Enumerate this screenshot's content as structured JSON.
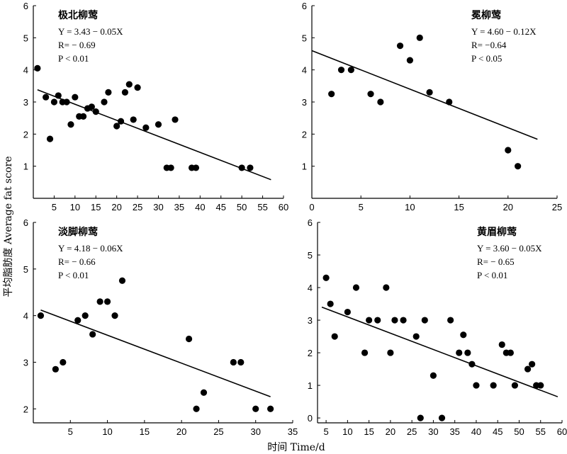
{
  "figure": {
    "ylabel": "平均脂肪度 Average fat score",
    "xlabel": "时间 Time/d"
  },
  "chart_data": [
    {
      "type": "scatter",
      "title": "极北柳莺",
      "annotations": [
        "Y = 3.43 − 0.05X",
        "R= − 0.69",
        "P < 0.01"
      ],
      "xlim": [
        0,
        60
      ],
      "ylim": [
        0,
        6
      ],
      "xticks": [
        5,
        10,
        15,
        20,
        25,
        30,
        35,
        40,
        45,
        50,
        55,
        60
      ],
      "yticks": [
        1,
        2,
        3,
        4,
        5,
        6
      ],
      "points": [
        [
          1,
          4.05
        ],
        [
          3,
          3.15
        ],
        [
          4,
          1.85
        ],
        [
          5,
          3.0
        ],
        [
          6,
          3.2
        ],
        [
          7,
          3.0
        ],
        [
          8,
          3.0
        ],
        [
          9,
          2.3
        ],
        [
          10,
          3.15
        ],
        [
          11,
          2.55
        ],
        [
          12,
          2.55
        ],
        [
          13,
          2.8
        ],
        [
          14,
          2.85
        ],
        [
          15,
          2.7
        ],
        [
          17,
          3.0
        ],
        [
          18,
          3.3
        ],
        [
          20,
          2.25
        ],
        [
          21,
          2.4
        ],
        [
          22,
          3.3
        ],
        [
          23,
          3.55
        ],
        [
          24,
          2.45
        ],
        [
          25,
          3.45
        ],
        [
          27,
          2.2
        ],
        [
          30,
          2.3
        ],
        [
          32,
          0.95
        ],
        [
          33,
          0.95
        ],
        [
          34,
          2.45
        ],
        [
          38,
          0.95
        ],
        [
          39,
          0.95
        ],
        [
          50,
          0.95
        ],
        [
          52,
          0.95
        ]
      ],
      "regression": {
        "intercept": 3.43,
        "slope": -0.05,
        "x_range": [
          1,
          57
        ]
      }
    },
    {
      "type": "scatter",
      "title": "冕柳莺",
      "annotations": [
        "Y = 4.60 − 0.12X",
        "R= −0.64",
        "P < 0.05"
      ],
      "xlim": [
        0,
        25
      ],
      "ylim": [
        0,
        6
      ],
      "xticks": [
        0,
        5,
        10,
        15,
        20,
        25
      ],
      "yticks": [
        1,
        2,
        3,
        4,
        5,
        6
      ],
      "points": [
        [
          2,
          3.25
        ],
        [
          3,
          4.0
        ],
        [
          4,
          4.0
        ],
        [
          6,
          3.25
        ],
        [
          7,
          3.0
        ],
        [
          9,
          4.75
        ],
        [
          10,
          4.3
        ],
        [
          11,
          5.0
        ],
        [
          12,
          3.3
        ],
        [
          14,
          3.0
        ],
        [
          20,
          1.5
        ],
        [
          21,
          1.0
        ]
      ],
      "regression": {
        "intercept": 4.6,
        "slope": -0.12,
        "x_range": [
          0,
          23
        ]
      }
    },
    {
      "type": "scatter",
      "title": "淡脚柳莺",
      "annotations": [
        "Y = 4.18 − 0.06X",
        "R= − 0.66",
        "P < 0.01"
      ],
      "xlim": [
        0,
        35
      ],
      "ylim": [
        1.7,
        6
      ],
      "xticks": [
        5,
        10,
        15,
        20,
        25,
        30,
        35
      ],
      "yticks": [
        2,
        3,
        4,
        5,
        6
      ],
      "points": [
        [
          1,
          4.0
        ],
        [
          3,
          2.85
        ],
        [
          4,
          3.0
        ],
        [
          6,
          3.9
        ],
        [
          7,
          4.0
        ],
        [
          8,
          3.6
        ],
        [
          9,
          4.3
        ],
        [
          10,
          4.3
        ],
        [
          11,
          4.0
        ],
        [
          12,
          4.75
        ],
        [
          21,
          3.5
        ],
        [
          22,
          2.0
        ],
        [
          23,
          2.35
        ],
        [
          27,
          3.0
        ],
        [
          28,
          3.0
        ],
        [
          30,
          2.0
        ],
        [
          32,
          2.0
        ]
      ],
      "regression": {
        "intercept": 4.18,
        "slope": -0.06,
        "x_range": [
          1,
          32
        ]
      }
    },
    {
      "type": "scatter",
      "title": "黄眉柳莺",
      "annotations": [
        "Y = 3.60 − 0.05X",
        "R= − 0.65",
        "P < 0.01"
      ],
      "xlim": [
        3,
        60
      ],
      "ylim": [
        -0.15,
        6
      ],
      "xticks": [
        5,
        10,
        15,
        20,
        25,
        30,
        35,
        40,
        45,
        50,
        55,
        60
      ],
      "yticks": [
        0,
        1,
        2,
        3,
        4,
        5,
        6
      ],
      "points": [
        [
          5,
          4.3
        ],
        [
          6,
          3.5
        ],
        [
          7,
          2.5
        ],
        [
          10,
          3.25
        ],
        [
          12,
          4.0
        ],
        [
          14,
          2.0
        ],
        [
          15,
          3.0
        ],
        [
          17,
          3.0
        ],
        [
          19,
          4.0
        ],
        [
          20,
          2.0
        ],
        [
          21,
          3.0
        ],
        [
          23,
          3.0
        ],
        [
          26,
          2.5
        ],
        [
          27,
          0.0
        ],
        [
          28,
          3.0
        ],
        [
          30,
          1.3
        ],
        [
          32,
          0.0
        ],
        [
          34,
          3.0
        ],
        [
          36,
          2.0
        ],
        [
          37,
          2.55
        ],
        [
          38,
          2.0
        ],
        [
          39,
          1.65
        ],
        [
          40,
          1.0
        ],
        [
          44,
          1.0
        ],
        [
          46,
          2.25
        ],
        [
          47,
          2.0
        ],
        [
          48,
          2.0
        ],
        [
          49,
          1.0
        ],
        [
          52,
          1.5
        ],
        [
          53,
          1.65
        ],
        [
          54,
          1.0
        ],
        [
          55,
          1.0
        ]
      ],
      "regression": {
        "intercept": 3.6,
        "slope": -0.05,
        "x_range": [
          4,
          59
        ]
      }
    }
  ]
}
